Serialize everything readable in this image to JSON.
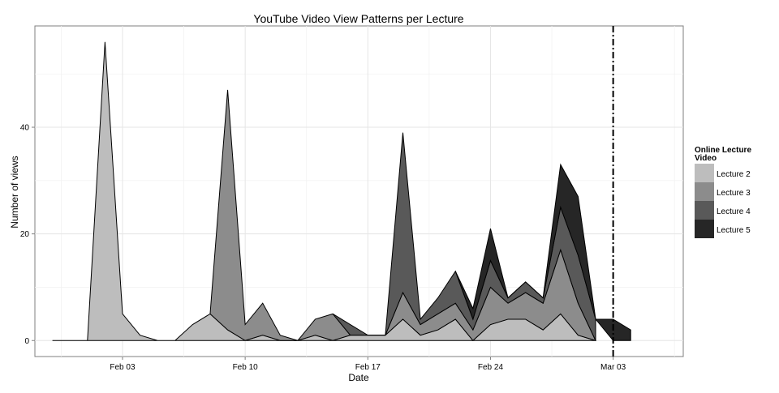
{
  "chart_data": {
    "type": "area",
    "stacked": true,
    "title": "YouTube Video View Patterns per Lecture",
    "xlabel": "Date",
    "ylabel": "Number of views",
    "x_unit": "date",
    "x": [
      "2015-01-30",
      "2015-01-31",
      "2015-02-01",
      "2015-02-02",
      "2015-02-03",
      "2015-02-04",
      "2015-02-05",
      "2015-02-06",
      "2015-02-07",
      "2015-02-08",
      "2015-02-09",
      "2015-02-10",
      "2015-02-11",
      "2015-02-12",
      "2015-02-13",
      "2015-02-14",
      "2015-02-15",
      "2015-02-16",
      "2015-02-17",
      "2015-02-18",
      "2015-02-19",
      "2015-02-20",
      "2015-02-21",
      "2015-02-22",
      "2015-02-23",
      "2015-02-24",
      "2015-02-25",
      "2015-02-26",
      "2015-02-27",
      "2015-02-28",
      "2015-03-01",
      "2015-03-02",
      "2015-03-03",
      "2015-03-04"
    ],
    "xticks": [
      "Feb 03",
      "Feb 10",
      "Feb 17",
      "Feb 24",
      "Mar 03"
    ],
    "xtick_dates": [
      "2015-02-03",
      "2015-02-10",
      "2015-02-17",
      "2015-02-24",
      "2015-03-03"
    ],
    "xlim": [
      "2015-01-29",
      "2015-03-07"
    ],
    "yticks": [
      0,
      20,
      40
    ],
    "ylim": [
      -3,
      59
    ],
    "grid": true,
    "vline": {
      "date": "2015-03-03",
      "style": "dashdot"
    },
    "legend": {
      "title": "Online Lecture\n Video",
      "placement": "right"
    },
    "series": [
      {
        "name": "Lecture 2",
        "color": "#bdbdbd",
        "values": [
          0,
          0,
          0,
          56,
          5,
          1,
          0,
          0,
          3,
          5,
          2,
          0,
          1,
          0,
          0,
          1,
          0,
          1,
          1,
          1,
          4,
          1,
          2,
          4,
          0,
          3,
          4,
          4,
          2,
          5,
          1,
          0,
          null,
          null
        ]
      },
      {
        "name": "Lecture 3",
        "color": "#8c8c8c",
        "values": [
          null,
          null,
          null,
          null,
          null,
          null,
          null,
          null,
          null,
          0,
          45,
          3,
          6,
          1,
          0,
          3,
          5,
          0,
          0,
          0,
          5,
          2,
          3,
          3,
          2,
          7,
          3,
          5,
          5,
          12,
          6,
          0,
          null,
          null
        ]
      },
      {
        "name": "Lecture 4",
        "color": "#595959",
        "values": [
          null,
          null,
          null,
          null,
          null,
          null,
          null,
          null,
          null,
          null,
          null,
          null,
          null,
          null,
          null,
          null,
          0,
          2,
          0,
          0,
          30,
          1,
          3,
          6,
          2,
          5,
          1,
          2,
          1,
          8,
          9,
          4,
          null,
          null
        ]
      },
      {
        "name": "Lecture 5",
        "color": "#262626",
        "values": [
          null,
          null,
          null,
          null,
          null,
          null,
          null,
          null,
          null,
          null,
          null,
          null,
          null,
          null,
          null,
          null,
          null,
          null,
          null,
          null,
          null,
          null,
          null,
          0,
          2,
          6,
          0,
          0,
          0,
          8,
          11,
          0,
          4,
          2
        ]
      }
    ]
  }
}
